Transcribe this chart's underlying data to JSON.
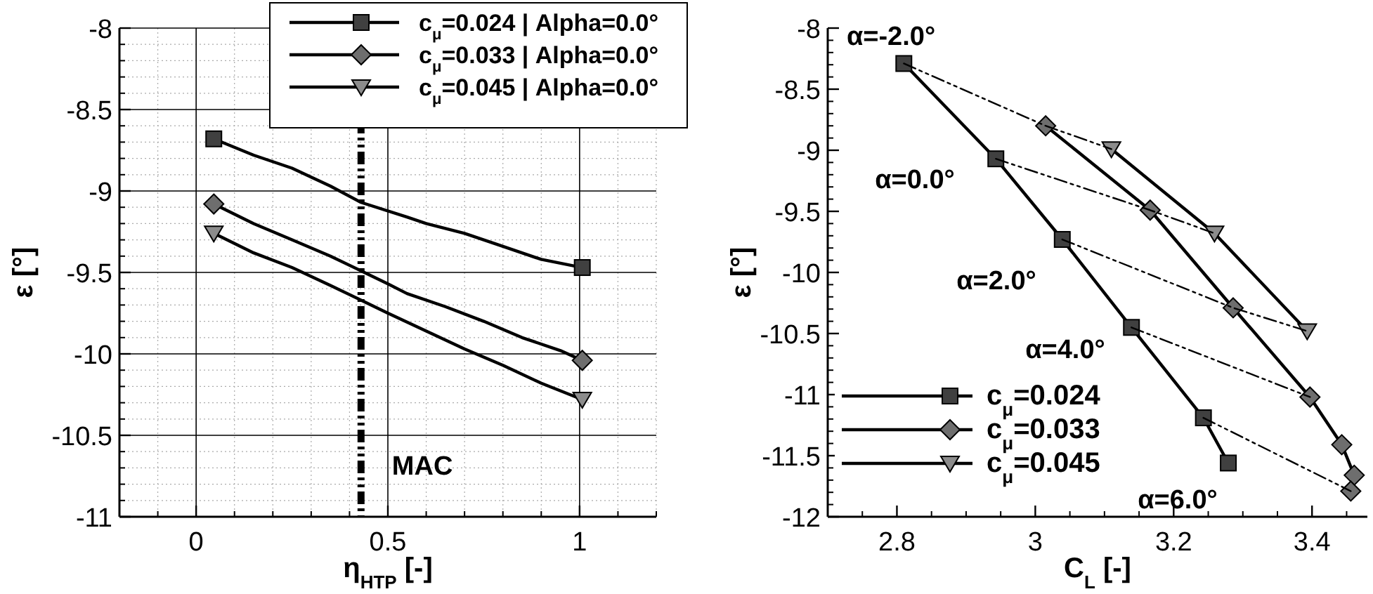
{
  "chart_data": [
    {
      "type": "line",
      "xlabel": "η$_{HTP}$ [-]",
      "ylabel": "ε [°]",
      "xlim": [
        -0.2,
        1.2
      ],
      "xticks": [
        0,
        0.5,
        1
      ],
      "ylim": [
        -11,
        -8
      ],
      "yticks": [
        -11,
        -10.5,
        -10,
        -9.5,
        -9,
        -8.5,
        -8
      ],
      "grid": true,
      "legend": "top right",
      "line_style": "solid",
      "series": [
        {
          "name": "c$_{μ}$=0.024 | Alpha=0.0°",
          "color": "#000000",
          "marker": "none",
          "x": [
            0.046,
            0.15,
            0.25,
            0.35,
            0.43,
            0.55,
            0.6,
            0.7,
            0.8,
            0.9,
            1.007
          ],
          "values": [
            -8.68,
            -8.78,
            -8.86,
            -8.97,
            -9.07,
            -9.16,
            -9.2,
            -9.26,
            -9.34,
            -9.42,
            -9.47
          ]
        },
        {
          "type": "scatter",
          "color": "#404040",
          "marker": "square",
          "x": [
            0.046,
            1.007
          ],
          "values": [
            -8.68,
            -9.47
          ]
        },
        {
          "name": "c$_{μ}$=0.033 | Alpha=0.0°",
          "color": "#000000",
          "marker": "none",
          "x": [
            0.046,
            0.15,
            0.25,
            0.35,
            0.43,
            0.5,
            0.55,
            0.65,
            0.75,
            0.85,
            0.95,
            1.007
          ],
          "values": [
            -9.08,
            -9.2,
            -9.3,
            -9.4,
            -9.49,
            -9.57,
            -9.63,
            -9.71,
            -9.8,
            -9.9,
            -9.98,
            -10.04
          ]
        },
        {
          "type": "scatter",
          "color": "#6e6e6e",
          "marker": "diamond",
          "x": [
            0.046,
            1.007
          ],
          "values": [
            -9.08,
            -10.04
          ]
        },
        {
          "name": "c$_{μ}$=0.045 | Alpha=0.0°",
          "color": "#000000",
          "marker": "none",
          "x": [
            0.046,
            0.15,
            0.25,
            0.35,
            0.43,
            0.5,
            0.6,
            0.7,
            0.8,
            0.9,
            1.007
          ],
          "values": [
            -9.26,
            -9.38,
            -9.47,
            -9.58,
            -9.67,
            -9.75,
            -9.86,
            -9.97,
            -10.07,
            -10.18,
            -10.28
          ]
        },
        {
          "type": "scatter",
          "color": "#8c8c8c",
          "marker": "triangle",
          "x": [
            0.046,
            1.007
          ],
          "values": [
            -9.26,
            -10.28
          ]
        }
      ],
      "ref_lines": [
        {
          "axis": "x",
          "value": 0.43,
          "label": "MAC",
          "color": "#000000",
          "line_style": "dashed"
        }
      ]
    },
    {
      "type": "line",
      "xlabel": "C$_{L}$ [-]",
      "ylabel": "ε [°]",
      "xlim": [
        2.7,
        3.48
      ],
      "xticks": [
        2.8,
        3,
        3.2,
        3.4
      ],
      "ylim": [
        -12,
        -8
      ],
      "yticks": [
        -12,
        -11.5,
        -11,
        -10.5,
        -10,
        -9.5,
        -9,
        -8.5,
        -8
      ],
      "legend": "bottom left",
      "line_style": "solid",
      "series": [
        {
          "name": "c$_{μ}$=0.024",
          "color": "#000000",
          "marker": "none",
          "x": [
            2.81,
            2.943,
            3.039,
            3.139,
            3.243,
            3.279
          ],
          "values": [
            -8.29,
            -9.07,
            -9.73,
            -10.45,
            -11.19,
            -11.56
          ]
        },
        {
          "type": "scatter",
          "color": "#404040",
          "marker": "square",
          "x": [
            2.81,
            2.943,
            3.039,
            3.139,
            3.243,
            3.279
          ],
          "values": [
            -8.29,
            -9.07,
            -9.73,
            -10.45,
            -11.19,
            -11.56
          ]
        },
        {
          "name": "c$_{μ}$=0.033",
          "color": "#000000",
          "marker": "none",
          "x": [
            3.015,
            3.166,
            3.286,
            3.397,
            3.443,
            3.461,
            3.456
          ],
          "values": [
            -8.8,
            -9.49,
            -10.29,
            -11.02,
            -11.41,
            -11.66,
            -11.79
          ]
        },
        {
          "type": "scatter",
          "color": "#6e6e6e",
          "marker": "diamond",
          "x": [
            3.015,
            3.166,
            3.286,
            3.397,
            3.443,
            3.461,
            3.456
          ],
          "values": [
            -8.8,
            -9.49,
            -10.29,
            -11.02,
            -11.41,
            -11.66,
            -11.79
          ]
        },
        {
          "name": "c$_{μ}$=0.045",
          "color": "#000000",
          "marker": "none",
          "x": [
            3.11,
            3.259,
            3.393
          ],
          "values": [
            -8.99,
            -9.68,
            -10.48
          ]
        },
        {
          "type": "scatter",
          "color": "#8c8c8c",
          "marker": "triangle",
          "x": [
            3.11,
            3.259,
            3.393
          ],
          "values": [
            -8.99,
            -9.68,
            -10.48
          ]
        },
        {
          "color": "#000000",
          "marker": "none",
          "line_style": "dashed",
          "x": [
            2.81,
            3.015,
            3.11
          ],
          "values": [
            -8.29,
            -8.8,
            -8.99
          ]
        },
        {
          "color": "#000000",
          "marker": "none",
          "line_style": "dashed",
          "x": [
            2.943,
            3.166,
            3.259
          ],
          "values": [
            -9.07,
            -9.49,
            -9.68
          ]
        },
        {
          "color": "#000000",
          "marker": "none",
          "line_style": "dashed",
          "x": [
            3.039,
            3.286,
            3.393
          ],
          "values": [
            -9.73,
            -10.29,
            -10.48
          ]
        },
        {
          "color": "#000000",
          "marker": "none",
          "line_style": "dashed",
          "x": [
            3.139,
            3.397
          ],
          "values": [
            -10.45,
            -11.02
          ]
        },
        {
          "color": "#000000",
          "marker": "none",
          "line_style": "dashed",
          "x": [
            3.243,
            3.456
          ],
          "values": [
            -11.19,
            -11.79
          ]
        }
      ],
      "annotations": [
        "α=-2.0°",
        "α=0.0°",
        "α=2.0°",
        "α=4.0°",
        "α=6.0°"
      ]
    }
  ]
}
